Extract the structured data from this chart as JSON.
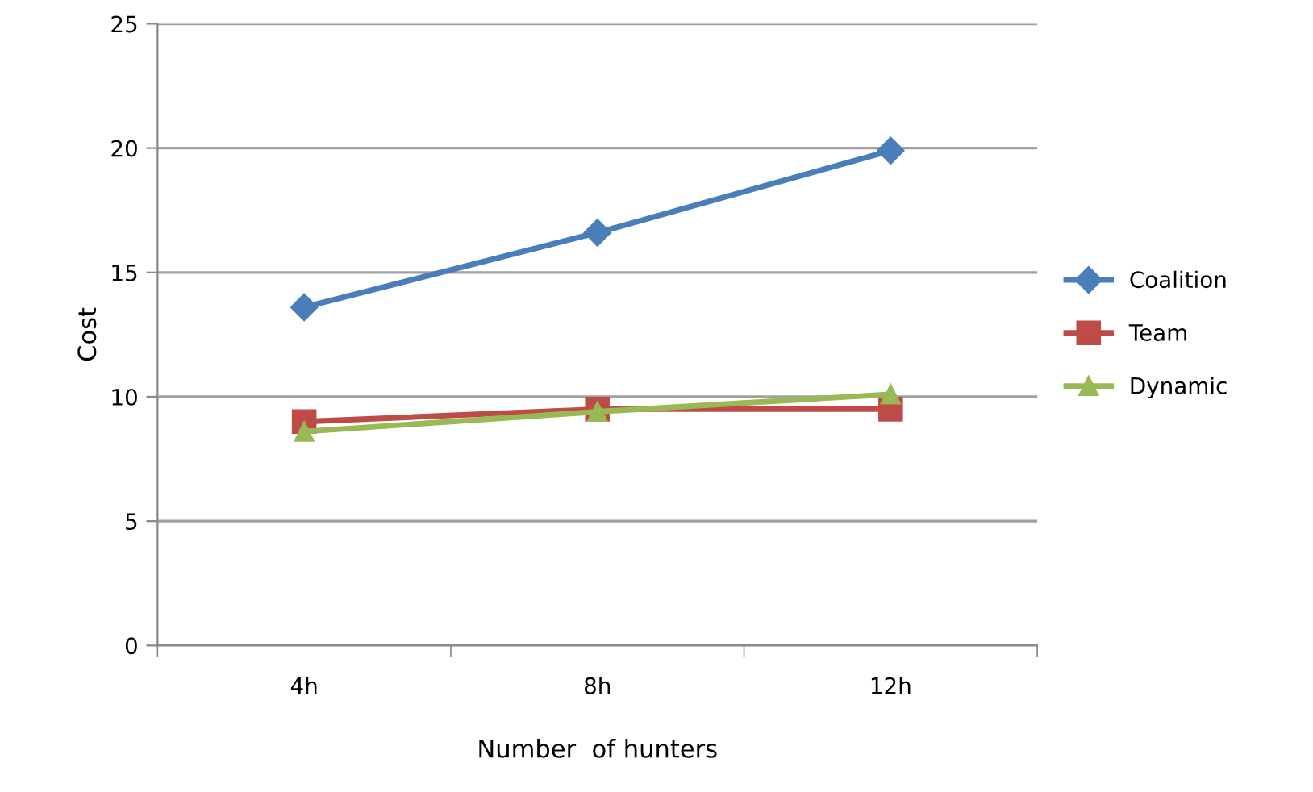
{
  "chart_data": {
    "type": "line",
    "xlabel": "Number  of hunters",
    "ylabel": "Cost",
    "categories": [
      "4h",
      "8h",
      "12h"
    ],
    "series": [
      {
        "name": "Coalition",
        "color": "#4a7ebb",
        "marker": "diamond",
        "values": [
          13.6,
          16.6,
          19.9
        ]
      },
      {
        "name": "Team",
        "color": "#be4b48",
        "marker": "square",
        "values": [
          9.0,
          9.5,
          9.5
        ]
      },
      {
        "name": "Dynamic",
        "color": "#98b954",
        "marker": "triangle",
        "values": [
          8.6,
          9.4,
          10.1
        ]
      }
    ],
    "ylim": [
      0,
      25
    ],
    "yticks": [
      0,
      5,
      10,
      15,
      20,
      25
    ],
    "grid": "y",
    "legend": "right",
    "line_style": "solid"
  }
}
